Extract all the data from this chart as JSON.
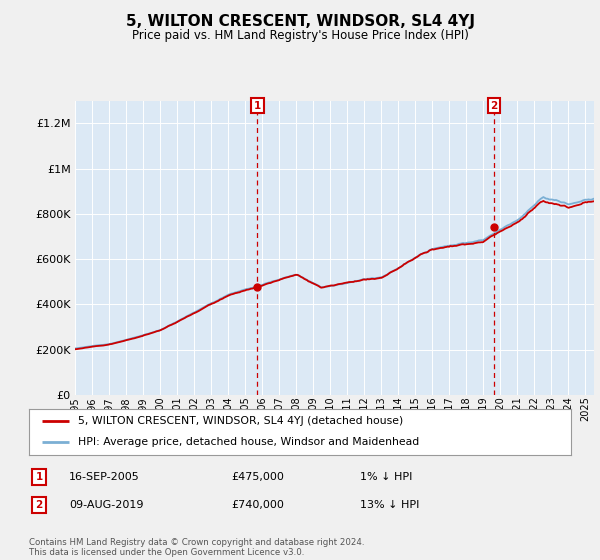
{
  "title": "5, WILTON CRESCENT, WINDSOR, SL4 4YJ",
  "subtitle": "Price paid vs. HM Land Registry's House Price Index (HPI)",
  "legend_line1": "5, WILTON CRESCENT, WINDSOR, SL4 4YJ (detached house)",
  "legend_line2": "HPI: Average price, detached house, Windsor and Maidenhead",
  "annotation1_label": "1",
  "annotation1_date": "16-SEP-2005",
  "annotation1_price": "£475,000",
  "annotation1_hpi": "1% ↓ HPI",
  "annotation2_label": "2",
  "annotation2_date": "09-AUG-2019",
  "annotation2_price": "£740,000",
  "annotation2_hpi": "13% ↓ HPI",
  "footnote": "Contains HM Land Registry data © Crown copyright and database right 2024.\nThis data is licensed under the Open Government Licence v3.0.",
  "hpi_color": "#7bafd4",
  "sale_color": "#cc0000",
  "annotation_box_color": "#cc0000",
  "bg_color": "#f0f0f0",
  "plot_bg_color": "#dce9f5",
  "ylim": [
    0,
    1300000
  ],
  "yticks": [
    0,
    200000,
    400000,
    600000,
    800000,
    1000000,
    1200000
  ],
  "ytick_labels": [
    "£0",
    "£200K",
    "£400K",
    "£600K",
    "£800K",
    "£1M",
    "£1.2M"
  ],
  "year_start": 1995,
  "year_end": 2025,
  "sale1_year": 2005.72,
  "sale1_value": 475000,
  "sale2_year": 2019.61,
  "sale2_value": 740000
}
